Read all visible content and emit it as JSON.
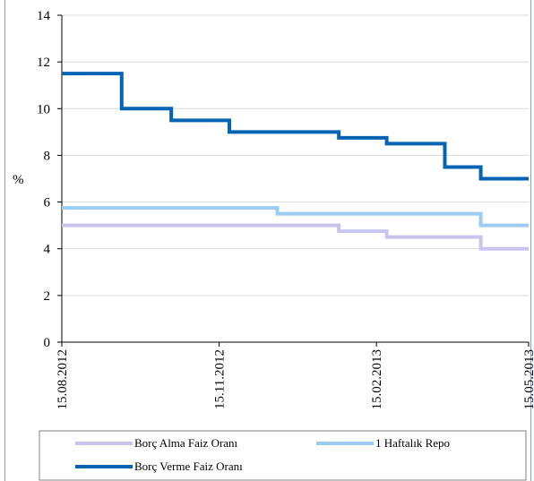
{
  "chart_data": {
    "type": "line",
    "title": "",
    "xlabel": "",
    "ylabel": "%",
    "ylim": [
      0,
      14
    ],
    "yticks": [
      0,
      2,
      4,
      6,
      8,
      10,
      12,
      14
    ],
    "xticks": [
      "15.08.2012",
      "15.11.2012",
      "15.02.2013",
      "15.05.2013"
    ],
    "xlim": [
      "2012-08-15",
      "2013-05-15"
    ],
    "grid": "horizontal",
    "legend_position": "bottom",
    "series": [
      {
        "name": "Borç Alma Faiz Oranı",
        "color": "#c8c4ee",
        "steps": [
          {
            "from": "2012-08-15",
            "value": 5.0
          },
          {
            "from": "2013-01-24",
            "value": 4.75
          },
          {
            "from": "2013-02-21",
            "value": 4.5
          },
          {
            "from": "2013-04-17",
            "value": 4.0
          }
        ]
      },
      {
        "name": "1 Haftalık Repo",
        "color": "#9ccbf4",
        "steps": [
          {
            "from": "2012-08-15",
            "value": 5.75
          },
          {
            "from": "2012-12-19",
            "value": 5.5
          },
          {
            "from": "2013-04-17",
            "value": 5.0
          }
        ]
      },
      {
        "name": "Borç Verme Faiz Oranı",
        "color": "#0563b4",
        "steps": [
          {
            "from": "2012-08-15",
            "value": 11.5
          },
          {
            "from": "2012-09-19",
            "value": 10.0
          },
          {
            "from": "2012-10-18",
            "value": 9.5
          },
          {
            "from": "2012-11-21",
            "value": 9.0
          },
          {
            "from": "2013-01-24",
            "value": 8.75
          },
          {
            "from": "2013-02-21",
            "value": 8.5
          },
          {
            "from": "2013-03-27",
            "value": 7.5
          },
          {
            "from": "2013-04-17",
            "value": 7.0
          }
        ]
      }
    ]
  }
}
